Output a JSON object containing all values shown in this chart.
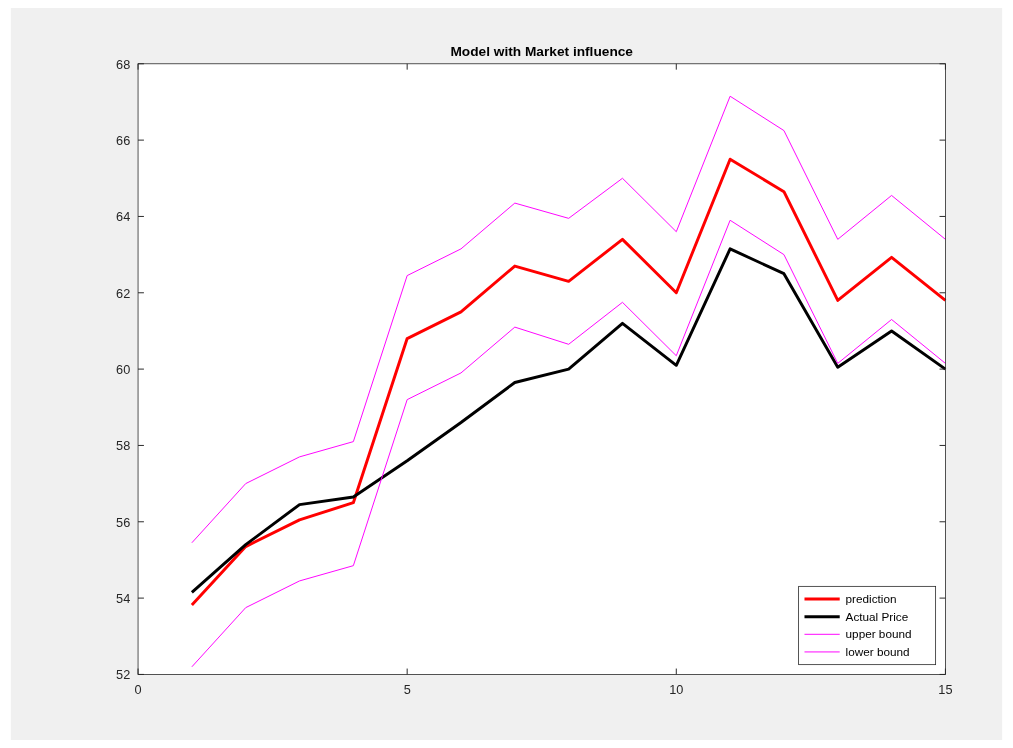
{
  "chart_data": {
    "type": "line",
    "title": "Model with Market influence",
    "x": [
      1,
      2,
      3,
      4,
      5,
      6,
      7,
      8,
      9,
      10,
      11,
      12,
      13,
      14,
      15
    ],
    "xlim": [
      0,
      15
    ],
    "xticks": [
      0,
      5,
      10,
      15
    ],
    "ylim": [
      52,
      68
    ],
    "yticks": [
      52,
      54,
      56,
      58,
      60,
      62,
      64,
      66,
      68
    ],
    "grid": false,
    "legend": "bottom right",
    "line_style": "solid",
    "series": [
      {
        "name": "prediction",
        "color": "#ff0000",
        "values": [
          53.82,
          55.35,
          56.05,
          56.5,
          60.8,
          61.5,
          62.7,
          62.3,
          63.4,
          62.0,
          65.5,
          64.65,
          61.8,
          62.93,
          61.8
        ]
      },
      {
        "name": "Actual Price",
        "color": "#000000",
        "values": [
          54.15,
          55.4,
          56.45,
          56.65,
          57.6,
          58.6,
          59.65,
          60.0,
          61.2,
          60.1,
          63.15,
          62.5,
          60.05,
          61.0,
          60.0
        ]
      },
      {
        "name": "upper bound",
        "color": "#ff00ff",
        "values": [
          55.45,
          57.0,
          57.7,
          58.1,
          62.45,
          63.15,
          64.35,
          63.95,
          65.0,
          63.6,
          67.15,
          66.25,
          63.4,
          64.55,
          63.4
        ]
      },
      {
        "name": "lower bound",
        "color": "#ff00ff",
        "values": [
          52.2,
          53.75,
          54.45,
          54.85,
          59.2,
          59.9,
          61.1,
          60.65,
          61.75,
          60.35,
          63.9,
          63.0,
          60.15,
          61.3,
          60.15
        ]
      }
    ]
  }
}
